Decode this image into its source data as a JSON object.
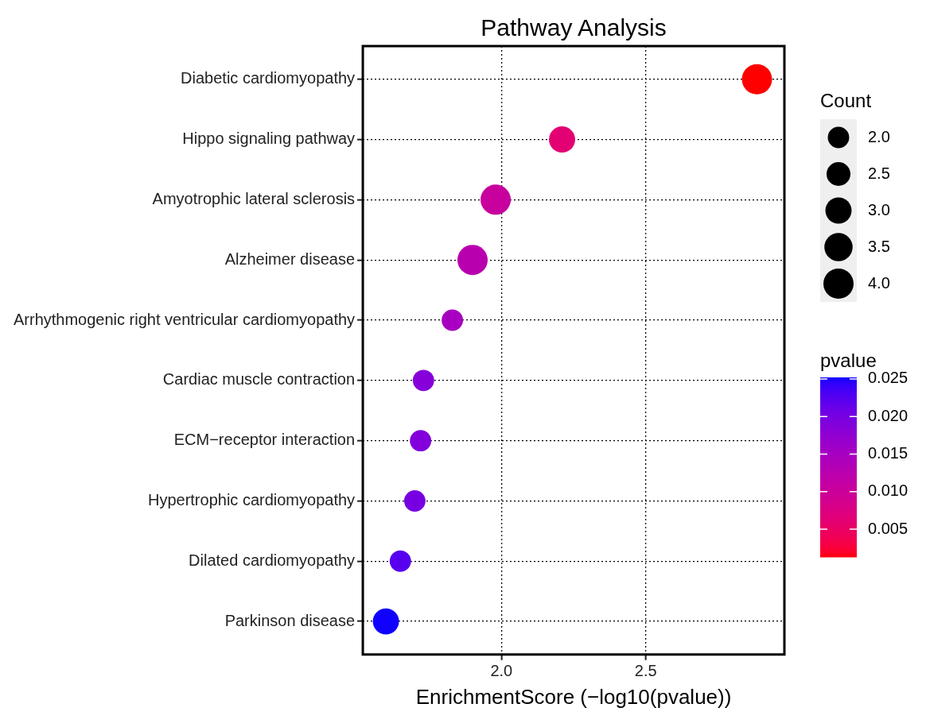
{
  "chart_data": {
    "type": "bubble",
    "orientation": "horizontal",
    "title": "Pathway Analysis",
    "xlabel": "EnrichmentScore (−log10(pvalue))",
    "legend_title": "Count",
    "clabel": "pvalue",
    "categories": [
      "Diabetic cardiomyopathy",
      "Hippo signaling pathway",
      "Amyotrophic lateral sclerosis",
      "Alzheimer disease",
      "Arrhythmogenic right ventricular cardiomyopathy",
      "Cardiac muscle contraction",
      "ECM−receptor interaction",
      "Hypertrophic cardiomyopathy",
      "Dilated cardiomyopathy",
      "Parkinson disease"
    ],
    "values": [
      2.885,
      2.21,
      1.98,
      1.9,
      1.83,
      1.73,
      1.72,
      1.7,
      1.65,
      1.6
    ],
    "sizes": [
      4,
      3,
      4,
      4,
      2,
      2,
      2,
      2,
      2,
      3
    ],
    "cvalues": [
      0.0013,
      0.0062,
      0.0105,
      0.0126,
      0.0148,
      0.0186,
      0.019,
      0.02,
      0.0224,
      0.0251
    ],
    "size_legend": [
      {
        "value": 2,
        "label": "2.0"
      },
      2.5,
      {
        "value": 3,
        "label": "3.0"
      },
      3.5,
      {
        "value": 4,
        "label": "4.0"
      }
    ],
    "clim": [
      0.0013,
      0.0252
    ],
    "cticks": [
      0.005,
      {
        "value": 0.01,
        "label": "0.010"
      },
      0.015,
      {
        "value": 0.02,
        "label": "0.020"
      },
      0.025
    ],
    "xlim": [
      1.52,
      2.98
    ],
    "xticks": [
      {
        "value": 2,
        "label": "2.0"
      },
      2.5
    ],
    "grid": true
  }
}
